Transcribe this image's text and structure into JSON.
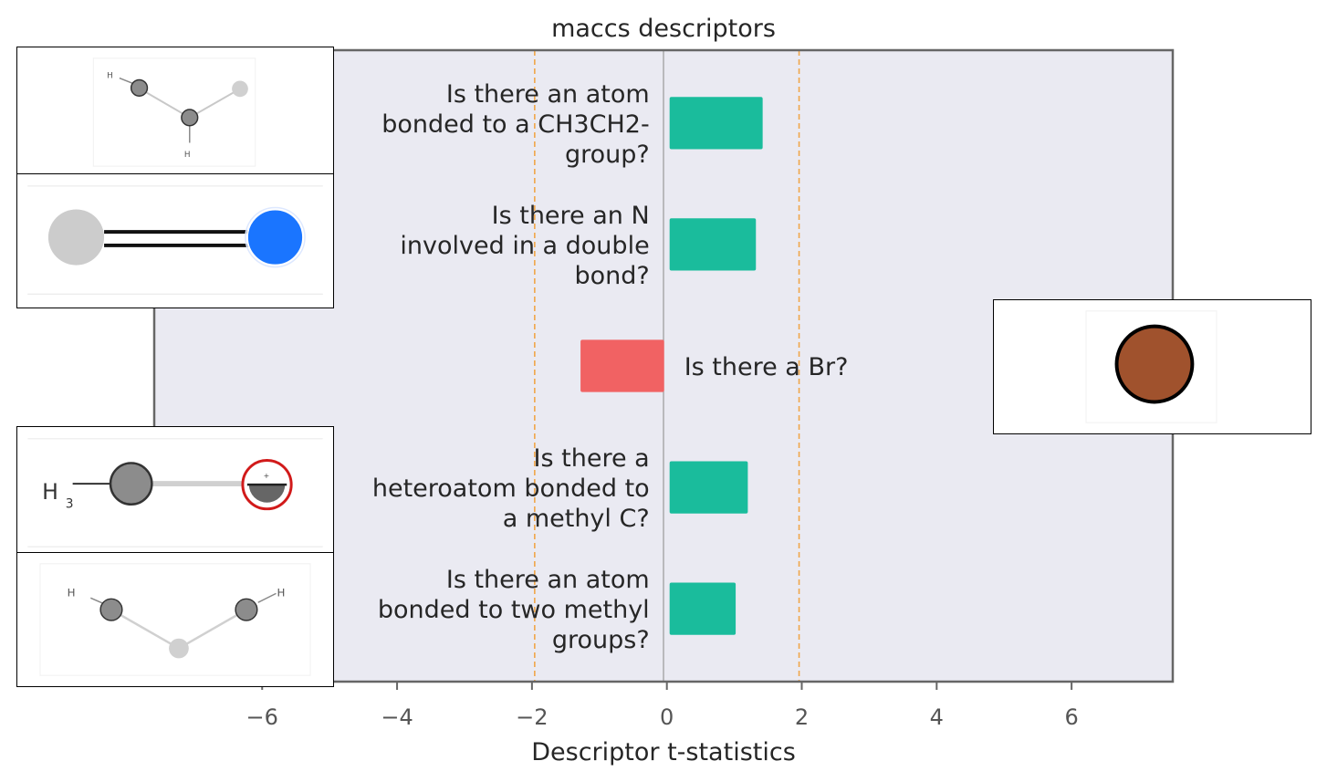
{
  "chart_data": {
    "type": "bar",
    "orientation": "horizontal",
    "title": "maccs descriptors",
    "xlabel": "Descriptor t-statistics",
    "ylabel": "",
    "xlim": [
      -7.6,
      7.5
    ],
    "xticks": [
      -6,
      -4,
      -2,
      0,
      2,
      4,
      6
    ],
    "xtick_labels": [
      "−6",
      "−4",
      "−2",
      "0",
      "2",
      "4",
      "6"
    ],
    "significance_lines": [
      -1.96,
      1.96
    ],
    "grid": false,
    "colors": {
      "positive": "#1abc9c",
      "negative": "#f16263",
      "significance": "#f0a64a",
      "background": "#eaeaf2"
    },
    "categories": [
      "Is there an atom bonded to a CH3CH2- group?",
      "Is there an N involved in a double bond?",
      "Is there a Br?",
      "Is there a heteroatom bonded to a methyl C?",
      "Is there an atom bonded to two methyl groups?"
    ],
    "category_lines": [
      [
        "Is there an atom",
        "bonded to a CH3CH2-",
        "group?"
      ],
      [
        "Is there an N",
        "involved in a double",
        "bond?"
      ],
      [
        "Is there a Br?"
      ],
      [
        "Is there a",
        "heteroatom bonded to",
        "a methyl C?"
      ],
      [
        "Is there an atom",
        "bonded to two methyl",
        "groups?"
      ]
    ],
    "values": [
      1.42,
      1.32,
      -1.28,
      1.2,
      1.02
    ]
  },
  "thumbnails": [
    {
      "side": "left",
      "row": 0,
      "icon": "ethyl-group-molecule-icon"
    },
    {
      "side": "left",
      "row": 1,
      "icon": "nitrogen-double-bond-molecule-icon"
    },
    {
      "side": "right",
      "row": 2,
      "icon": "bromine-atom-icon"
    },
    {
      "side": "left",
      "row": 3,
      "icon": "methyl-heteroatom-molecule-icon"
    },
    {
      "side": "left",
      "row": 4,
      "icon": "two-methyl-molecule-icon"
    }
  ]
}
